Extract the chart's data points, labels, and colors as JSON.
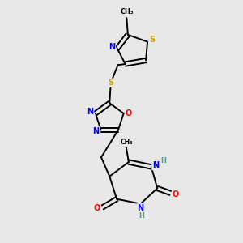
{
  "bg_color": "#e8e8e8",
  "atom_colors": {
    "N": "#0000ff",
    "O": "#ff0000",
    "S": "#ccaa00",
    "H": "#4a9a8a",
    "C": "#000000"
  },
  "lw": 1.4,
  "fs": 7.0
}
